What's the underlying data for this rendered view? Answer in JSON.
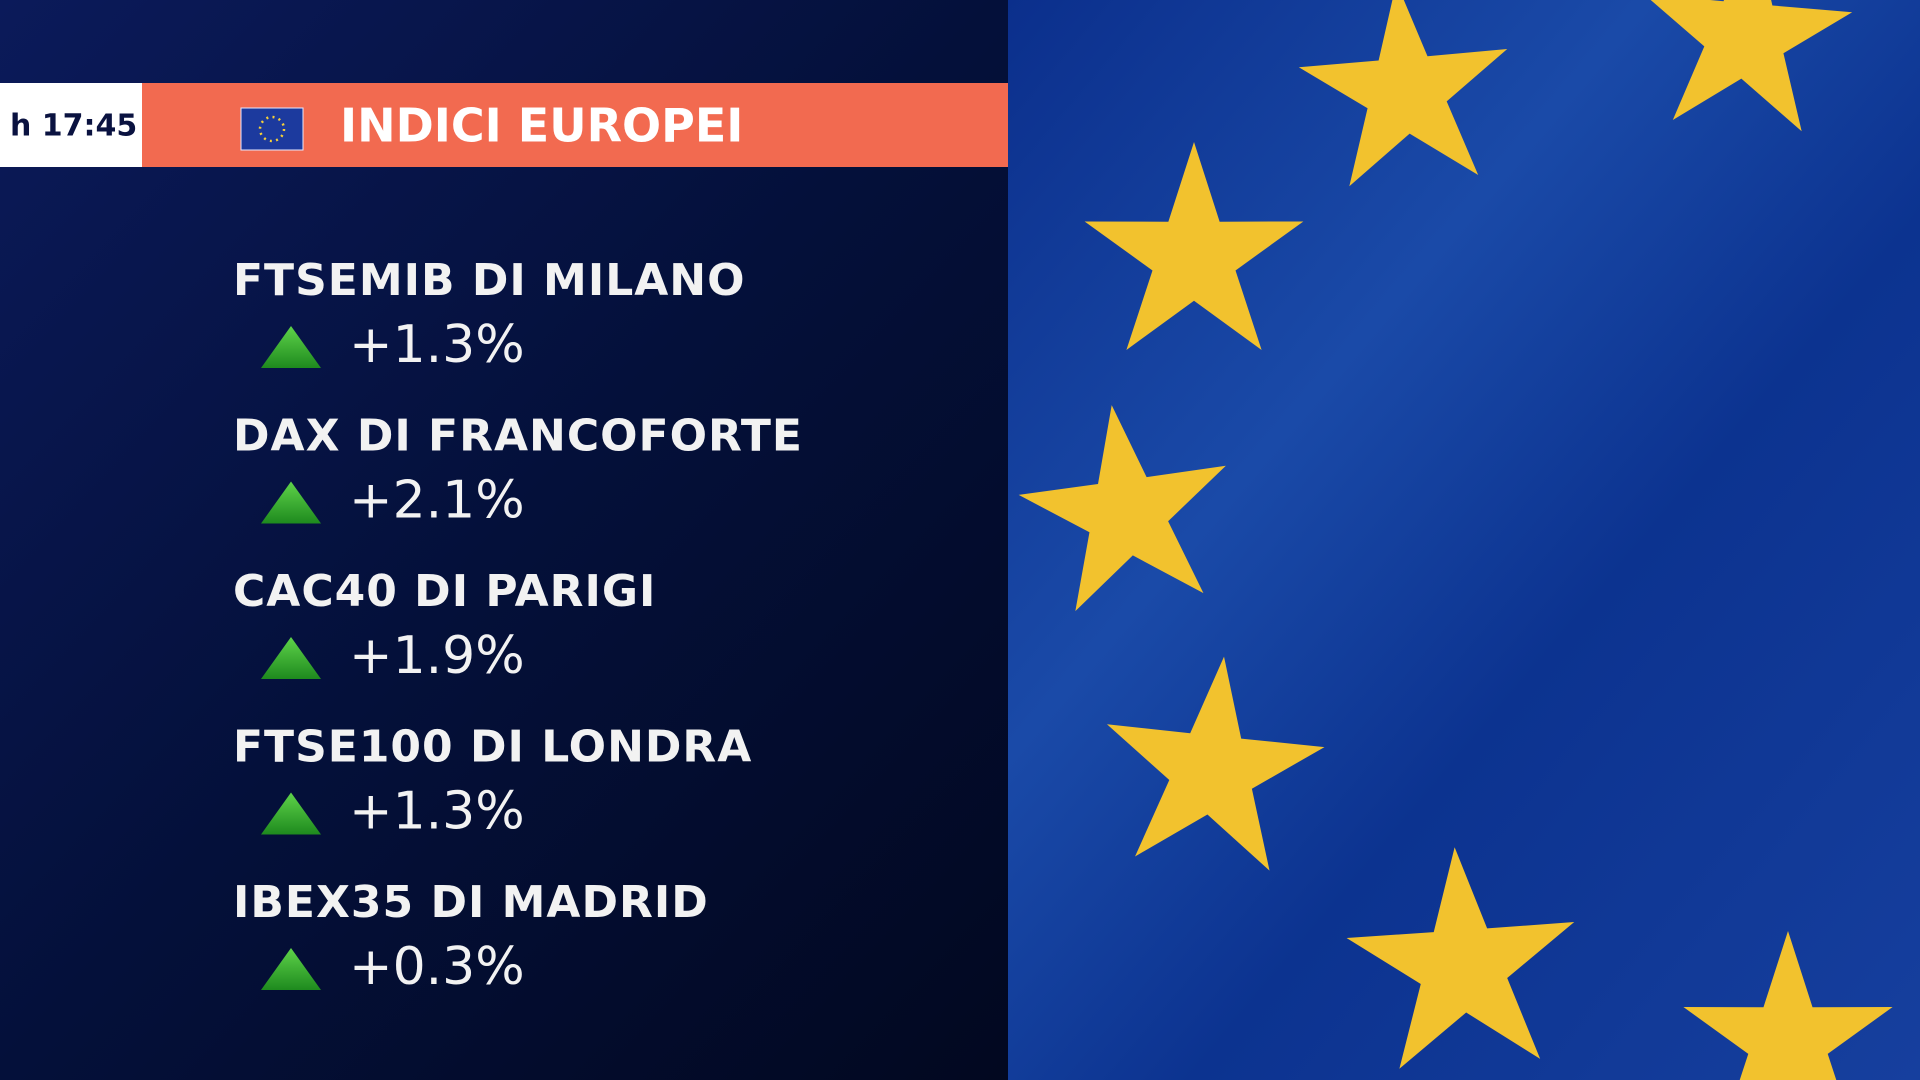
{
  "header": {
    "time": "h 17:45",
    "title": "INDICI EUROPEI"
  },
  "indices": [
    {
      "name": "FTSEMIB DI MILANO",
      "change": "+1.3%"
    },
    {
      "name": "DAX DI FRANCOFORTE",
      "change": "+2.1%"
    },
    {
      "name": "CAC40 DI PARIGI",
      "change": "+1.9%"
    },
    {
      "name": "FTSE100 DI LONDRA",
      "change": "+1.3%"
    },
    {
      "name": "IBEX35 DI MADRID",
      "change": "+0.3%"
    }
  ]
}
